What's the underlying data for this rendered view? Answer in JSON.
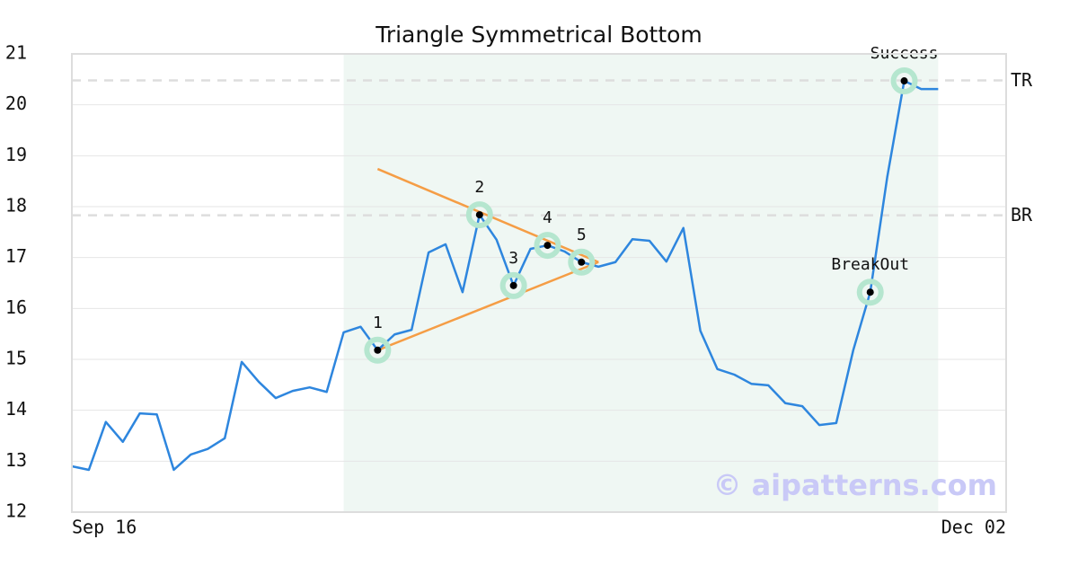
{
  "chart_data": {
    "type": "line",
    "title": "Triangle Symmetrical Bottom",
    "categories": [
      "Sep 16",
      null,
      null,
      null,
      null,
      null,
      null,
      null,
      null,
      null,
      null,
      null,
      null,
      null,
      null,
      null,
      null,
      null,
      null,
      null,
      null,
      null,
      null,
      null,
      null,
      null,
      null,
      null,
      null,
      null,
      null,
      null,
      null,
      null,
      null,
      null,
      null,
      null,
      null,
      null,
      null,
      null,
      null,
      null,
      null,
      null,
      null,
      null,
      null,
      null,
      null,
      null,
      null,
      null,
      null,
      "Dec 02"
    ],
    "values": [
      12.9,
      12.83,
      13.77,
      13.38,
      13.94,
      13.92,
      12.83,
      13.13,
      13.24,
      13.45,
      14.95,
      14.56,
      14.24,
      14.38,
      14.45,
      14.36,
      15.53,
      15.64,
      15.18,
      15.49,
      15.58,
      17.1,
      17.26,
      16.32,
      17.84,
      17.35,
      16.45,
      17.17,
      17.24,
      17.12,
      16.91,
      16.82,
      16.91,
      17.36,
      17.33,
      16.92,
      17.58,
      15.56,
      14.81,
      14.7,
      14.52,
      14.49,
      14.14,
      14.08,
      13.71,
      13.75,
      15.18,
      16.32,
      18.58,
      20.47,
      20.31,
      20.31,
      null,
      null,
      null,
      null
    ],
    "color": "#2e86de",
    "ylim": [
      12,
      21
    ],
    "yticks": [
      12,
      13,
      14,
      15,
      16,
      17,
      18,
      19,
      20,
      21
    ],
    "grid": true,
    "highlight_range": [
      16,
      51
    ],
    "highlight_color": "#eff7f3",
    "ref_lines": [
      {
        "label": "TR",
        "value": 20.48
      },
      {
        "label": "BR",
        "value": 17.83
      }
    ],
    "trendlines": [
      {
        "x": [
          18,
          31
        ],
        "y": [
          18.74,
          16.91
        ]
      },
      {
        "x": [
          18,
          31
        ],
        "y": [
          15.18,
          16.91
        ]
      }
    ],
    "trendline_color": "#f59d45",
    "points": [
      {
        "label": "1",
        "index": 18
      },
      {
        "label": "2",
        "index": 24
      },
      {
        "label": "3",
        "index": 26
      },
      {
        "label": "4",
        "index": 28
      },
      {
        "label": "5",
        "index": 30
      },
      {
        "label": "BreakOut",
        "index": 47
      },
      {
        "label": "Success",
        "index": 49
      }
    ],
    "watermark": "© aipatterns.com"
  }
}
